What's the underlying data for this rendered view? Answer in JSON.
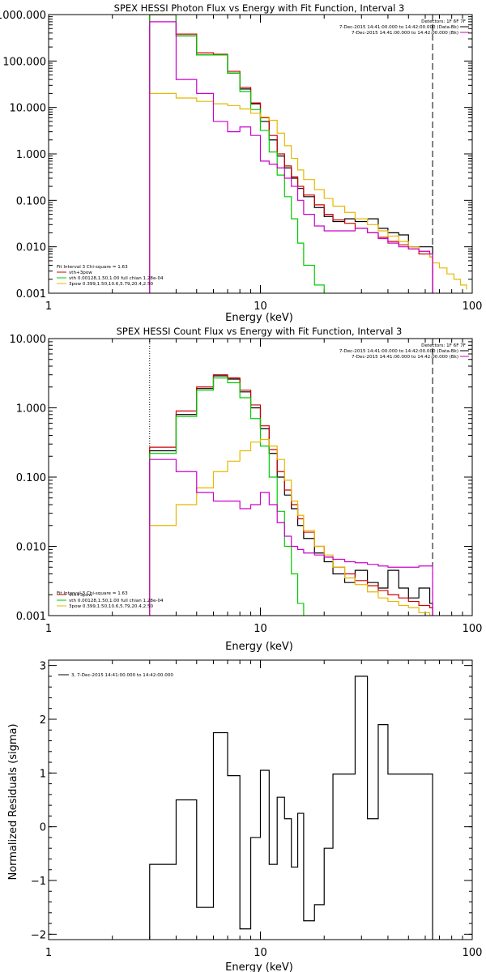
{
  "colors": {
    "data": "#000000",
    "total": "#cc0000",
    "thermal": "#00cc00",
    "powerlaw": "#e6b800",
    "background": "#cc00cc",
    "residual": "#000000"
  },
  "chart_data": [
    {
      "type": "line",
      "title": "SPEX HESSI Photon Flux vs Energy with Fit Function, Interval 3",
      "xlabel": "Energy (keV)",
      "ylabel": "",
      "x_scale": "log",
      "y_scale": "log",
      "xlim": [
        1,
        100
      ],
      "ylim": [
        0.001,
        1000
      ],
      "xticks": [
        "1",
        "10",
        "100"
      ],
      "yticks": [
        "0.001",
        "0.010",
        "0.100",
        "1.000",
        "10.000",
        "100.000",
        "1000.000"
      ],
      "ytick_values": [
        0.001,
        0.01,
        0.1,
        1,
        10,
        100,
        1000
      ],
      "detectors": "Detectors: 1F 6F 7F",
      "legend_top": [
        {
          "text": "7-Dec-2015 14:41:00.000 to 14:42:00.000 (Data-Bk)",
          "color": "#000000"
        },
        {
          "text": "7-Dec-2015 14:41:00.000 to 14:42:00.000 (Bk)",
          "color": "#cc00cc"
        }
      ],
      "fit_info": "Fit Interval 3   Chi-square = 1.63",
      "legend_bottom": [
        {
          "text": "vth+3pow",
          "color": "#cc0000"
        },
        {
          "text": "vth 0.00128,1.50,1.00  full chian 1.28e-04",
          "color": "#00cc00"
        },
        {
          "text": "3pow 0.399,1.50,10.6,5.79,20.4,2.50",
          "color": "#e6b800"
        }
      ],
      "vlines": [
        {
          "x": 3.0,
          "style": "dotted",
          "color": "#e6b800"
        },
        {
          "x": 65,
          "style": "dashed",
          "color": "#000000"
        }
      ],
      "bin_edges": [
        3.0,
        4.0,
        5.0,
        6.0,
        7.0,
        8.0,
        9.0,
        10.0,
        11.0,
        12.0,
        13.0,
        14.0,
        15.0,
        16.0,
        18.0,
        20.0,
        22.0,
        25.0,
        28.0,
        32.0,
        36.0,
        40.0,
        45.0,
        50.0,
        56.0,
        63.0,
        65.0
      ],
      "series": [
        {
          "color": "#000000",
          "values": [
            1000,
            350,
            135,
            135,
            55,
            25,
            12,
            5,
            2,
            0.9,
            0.5,
            0.3,
            0.18,
            0.12,
            0.07,
            0.045,
            0.035,
            0.04,
            0.035,
            0.04,
            0.025,
            0.02,
            0.018,
            0.01,
            0.01,
            0.01
          ]
        },
        {
          "color": "#cc0000",
          "values": [
            1000,
            380,
            150,
            140,
            60,
            27,
            12.5,
            6,
            2.5,
            1.0,
            0.55,
            0.32,
            0.2,
            0.13,
            0.08,
            0.05,
            0.038,
            0.032,
            0.025,
            0.02,
            0.016,
            0.013,
            0.011,
            0.009,
            0.007,
            0.006
          ]
        },
        {
          "color": "#00cc00",
          "values": [
            1000,
            350,
            135,
            135,
            55,
            22,
            9,
            3.2,
            1.1,
            0.35,
            0.12,
            0.04,
            0.012,
            0.004,
            0.0015,
            0.0005
          ]
        },
        {
          "color": "#e6b800",
          "values": [
            20,
            16,
            13.5,
            12,
            11,
            9.3,
            7.5,
            6.2,
            5.3,
            2.8,
            1.5,
            0.8,
            0.45,
            0.28,
            0.17,
            0.11,
            0.075,
            0.055,
            0.04,
            0.03,
            0.022,
            0.017,
            0.013,
            0.01,
            0.008,
            0.006,
            0.0045,
            0.0035,
            0.0026,
            0.002,
            0.0015,
            0.0012
          ],
          "extra_edges": [
            70.0,
            76.0,
            82.0,
            88.0,
            94.0
          ]
        },
        {
          "color": "#cc00cc",
          "values": [
            700,
            40,
            20,
            5,
            3.0,
            3.8,
            2.5,
            0.7,
            0.6,
            0.5,
            0.3,
            0.2,
            0.1,
            0.05,
            0.028,
            0.022,
            0.022,
            0.022,
            0.025,
            0.02,
            0.015,
            0.012,
            0.01,
            0.009,
            0.008,
            0.007
          ]
        }
      ]
    },
    {
      "type": "line",
      "title": "SPEX HESSI Count Flux vs Energy with Fit Function, Interval 3",
      "xlabel": "Energy (keV)",
      "ylabel": "",
      "x_scale": "log",
      "y_scale": "log",
      "xlim": [
        1,
        100
      ],
      "ylim": [
        0.001,
        10
      ],
      "xticks": [
        "1",
        "10",
        "100"
      ],
      "yticks": [
        "0.001",
        "0.010",
        "0.100",
        "1.000",
        "10.000"
      ],
      "ytick_values": [
        0.001,
        0.01,
        0.1,
        1,
        10
      ],
      "detectors": "Detectors: 1F 6F 7F",
      "legend_top": [
        {
          "text": "7-Dec-2015 14:41:00.000 to 14:42:00.000 (Data-Bk)",
          "color": "#000000"
        },
        {
          "text": "7-Dec-2015 14:41:00.000 to 14:42:00.000 (Bk)",
          "color": "#cc00cc"
        }
      ],
      "fit_info": "Fit Interval 3   Chi-square = 1.63",
      "legend_bottom": [
        {
          "text": "vth+3pow",
          "color": "#cc0000"
        },
        {
          "text": "vth 0.00128,1.50,1.00  full chian 1.28e-04",
          "color": "#00cc00"
        },
        {
          "text": "3pow 0.399,1.50,10.6,5.79,20.4,2.50",
          "color": "#e6b800"
        }
      ],
      "vlines": [
        {
          "x": 3.0,
          "style": "dotted",
          "color": "#000000"
        },
        {
          "x": 65,
          "style": "dashed",
          "color": "#000000"
        }
      ],
      "bin_edges": [
        3.0,
        4.0,
        5.0,
        6.0,
        7.0,
        8.0,
        9.0,
        10.0,
        11.0,
        12.0,
        13.0,
        14.0,
        15.0,
        16.0,
        18.0,
        20.0,
        22.0,
        25.0,
        28.0,
        32.0,
        36.0,
        40.0,
        45.0,
        50.0,
        56.0,
        63.0,
        65.0
      ],
      "series": [
        {
          "color": "#000000",
          "values": [
            0.24,
            0.8,
            1.9,
            2.9,
            2.6,
            1.7,
            1.0,
            0.5,
            0.22,
            0.1,
            0.055,
            0.035,
            0.02,
            0.013,
            0.008,
            0.006,
            0.004,
            0.003,
            0.0045,
            0.003,
            0.0025,
            0.0045,
            0.0025,
            0.0018,
            0.0025,
            0.0015
          ]
        },
        {
          "color": "#cc0000",
          "values": [
            0.27,
            0.9,
            2.0,
            3.0,
            2.7,
            1.8,
            1.1,
            0.55,
            0.25,
            0.12,
            0.065,
            0.04,
            0.025,
            0.016,
            0.01,
            0.007,
            0.005,
            0.004,
            0.0032,
            0.0027,
            0.0023,
            0.002,
            0.0018,
            0.0016,
            0.0014,
            0.0013
          ]
        },
        {
          "color": "#00cc00",
          "values": [
            0.22,
            0.75,
            1.8,
            2.7,
            2.3,
            1.4,
            0.7,
            0.28,
            0.1,
            0.032,
            0.01,
            0.004,
            0.0015,
            0.0007
          ]
        },
        {
          "color": "#e6b800",
          "values": [
            0.02,
            0.04,
            0.07,
            0.12,
            0.17,
            0.24,
            0.32,
            0.35,
            0.28,
            0.18,
            0.09,
            0.045,
            0.028,
            0.017,
            0.01,
            0.0075,
            0.005,
            0.0035,
            0.0028,
            0.0022,
            0.0018,
            0.0016,
            0.0014,
            0.0013,
            0.0011,
            0.001
          ]
        },
        {
          "color": "#cc00cc",
          "values": [
            0.18,
            0.12,
            0.06,
            0.045,
            0.045,
            0.035,
            0.04,
            0.06,
            0.04,
            0.022,
            0.014,
            0.01,
            0.009,
            0.008,
            0.0075,
            0.007,
            0.0065,
            0.006,
            0.0058,
            0.0055,
            0.0052,
            0.005,
            0.005,
            0.005,
            0.0052,
            0.0052
          ]
        }
      ]
    },
    {
      "type": "line",
      "title": "",
      "xlabel": "Energy (keV)",
      "ylabel": "Normalized Residuals (sigma)",
      "x_scale": "log",
      "y_scale": "linear",
      "xlim": [
        1,
        100
      ],
      "ylim": [
        -2.1,
        3.1
      ],
      "xticks": [
        "1",
        "10",
        "100"
      ],
      "yticks": [
        "−2",
        "−1",
        "0",
        "1",
        "2",
        "3"
      ],
      "ytick_values": [
        -2,
        -1,
        0,
        1,
        2,
        3
      ],
      "legend_top_left": "3,  7-Dec-2015 14:41:00.000 to 14:42:00.000",
      "bin_edges": [
        3.0,
        4.0,
        5.0,
        6.0,
        7.0,
        8.0,
        9.0,
        10.0,
        11.0,
        12.0,
        13.0,
        14.0,
        15.0,
        16.0,
        18.0,
        20.0,
        22.0,
        25.0,
        28.0,
        32.0,
        36.0,
        40.0,
        45.0,
        50.0,
        56.0,
        63.0,
        65.0
      ],
      "series": [
        {
          "color": "#000000",
          "values": [
            -0.7,
            0.5,
            -1.5,
            1.75,
            0.95,
            -1.9,
            -0.2,
            1.05,
            -0.7,
            0.55,
            0.15,
            -0.75,
            0.25,
            -1.75,
            -1.45,
            -0.4,
            0.98,
            0.98,
            2.8,
            0.15,
            1.9,
            0.98,
            0.98,
            0.98,
            0.98,
            0.98
          ]
        }
      ]
    }
  ]
}
